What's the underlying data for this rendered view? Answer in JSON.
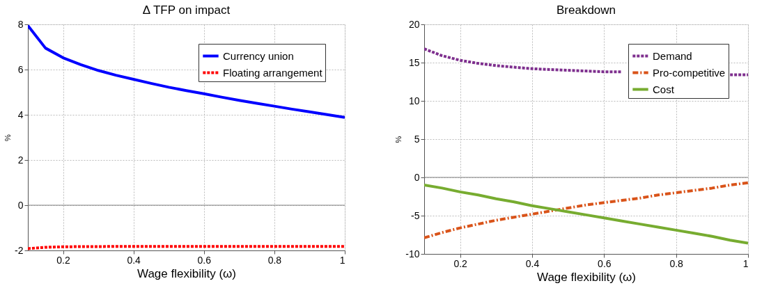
{
  "chart_data": [
    {
      "type": "line",
      "title": "Δ TFP on impact",
      "xlabel": "Wage flexibility (ω)",
      "ylabel": "%",
      "xlim": [
        0.1,
        1
      ],
      "xticks": [
        0.2,
        0.4,
        0.6,
        0.8,
        1
      ],
      "ylim": [
        -2,
        8
      ],
      "yticks": [
        -2,
        0,
        2,
        4,
        6,
        8
      ],
      "grid": true,
      "legend": "top right",
      "marker": "none",
      "x": [
        0.1,
        0.15,
        0.2,
        0.25,
        0.3,
        0.35,
        0.4,
        0.45,
        0.5,
        0.55,
        0.6,
        0.65,
        0.7,
        0.75,
        0.8,
        0.85,
        0.9,
        0.95,
        1
      ],
      "series": [
        {
          "name": "Currency union",
          "color": "#0000ff",
          "line_style": "solid",
          "values": [
            7.95,
            6.95,
            6.52,
            6.22,
            5.96,
            5.75,
            5.57,
            5.39,
            5.22,
            5.07,
            4.93,
            4.78,
            4.64,
            4.51,
            4.38,
            4.25,
            4.13,
            4.01,
            3.88
          ]
        },
        {
          "name": "Floating arrangement",
          "color": "#ff0000",
          "line_style": "dotted",
          "values": [
            -1.92,
            -1.86,
            -1.84,
            -1.83,
            -1.83,
            -1.82,
            -1.82,
            -1.82,
            -1.82,
            -1.82,
            -1.82,
            -1.82,
            -1.82,
            -1.82,
            -1.82,
            -1.82,
            -1.82,
            -1.82,
            -1.82
          ]
        }
      ],
      "ref_lines": [
        {
          "axis": "y",
          "value": 0,
          "color": "#808080"
        }
      ]
    },
    {
      "type": "line",
      "title": "Breakdown",
      "xlabel": "Wage flexibility (ω)",
      "ylabel": "%",
      "xlim": [
        0.1,
        1
      ],
      "xticks": [
        0.2,
        0.4,
        0.6,
        0.8,
        1
      ],
      "ylim": [
        -10,
        20
      ],
      "yticks": [
        -10,
        -5,
        0,
        5,
        10,
        15,
        20
      ],
      "grid": true,
      "legend": "top right",
      "marker": "none",
      "x": [
        0.1,
        0.15,
        0.2,
        0.25,
        0.3,
        0.35,
        0.4,
        0.45,
        0.5,
        0.55,
        0.6,
        0.65,
        0.7,
        0.75,
        0.8,
        0.85,
        0.9,
        0.95,
        1
      ],
      "series": [
        {
          "name": "Demand",
          "color": "#7e2f8e",
          "line_style": "dotted",
          "values": [
            16.8,
            15.9,
            15.3,
            14.9,
            14.6,
            14.4,
            14.2,
            14.1,
            14.0,
            13.9,
            13.8,
            13.8,
            null,
            null,
            null,
            null,
            null,
            13.4,
            13.4
          ]
        },
        {
          "name": "Pro-competitive",
          "color": "#d95319",
          "line_style": "dashed",
          "values": [
            -7.9,
            -7.2,
            -6.6,
            -6.1,
            -5.6,
            -5.2,
            -4.8,
            -4.4,
            -4.0,
            -3.6,
            -3.3,
            -3.0,
            -2.7,
            -2.3,
            -2.0,
            -1.7,
            -1.4,
            -1.0,
            -0.7
          ]
        },
        {
          "name": "Cost",
          "color": "#77ac30",
          "line_style": "solid",
          "values": [
            -1.0,
            -1.4,
            -1.9,
            -2.3,
            -2.8,
            -3.2,
            -3.7,
            -4.1,
            -4.5,
            -4.9,
            -5.3,
            -5.7,
            -6.1,
            -6.5,
            -6.9,
            -7.3,
            -7.7,
            -8.2,
            -8.6
          ]
        }
      ],
      "ref_lines": [
        {
          "axis": "y",
          "value": 0,
          "color": "#808080"
        }
      ]
    }
  ]
}
